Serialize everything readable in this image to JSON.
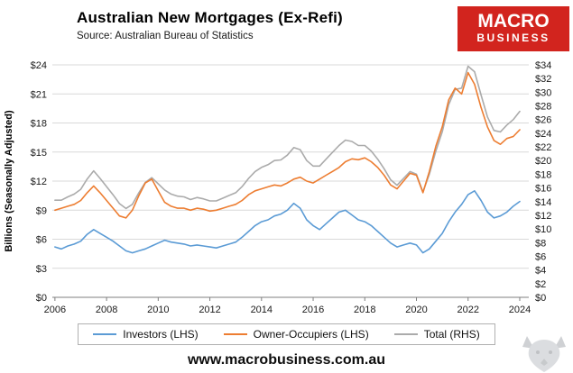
{
  "header": {
    "title": "Australian New Mortgages (Ex-Refi)",
    "source": "Source: Australian Bureau of Statistics",
    "logo": {
      "line1": "MACRO",
      "line2": "BUSINESS"
    }
  },
  "footer": {
    "url": "www.macrobusiness.com.au"
  },
  "legend": [
    {
      "label": "Investors (LHS)",
      "color": "#5b9bd5"
    },
    {
      "label": "Owner-Occupiers (LHS)",
      "color": "#ed7d31"
    },
    {
      "label": "Total (RHS)",
      "color": "#ababab"
    }
  ],
  "chart_data": {
    "type": "line",
    "title": "Australian New Mortgages (Ex-Refi)",
    "ylabel_left": "Billions (Seasonally Adjusted)",
    "tick_prefix": "$",
    "xlim": [
      2005.9,
      2024.35
    ],
    "ylim_left": [
      0,
      24
    ],
    "ylim_right": [
      0,
      34
    ],
    "yticks_left": [
      0,
      3,
      6,
      9,
      12,
      15,
      18,
      21,
      24
    ],
    "yticks_right": [
      0,
      2,
      4,
      6,
      8,
      10,
      12,
      14,
      16,
      18,
      20,
      22,
      24,
      26,
      28,
      30,
      32,
      34
    ],
    "xticks": [
      2006,
      2008,
      2010,
      2012,
      2014,
      2016,
      2018,
      2020,
      2022,
      2024
    ],
    "grid": true,
    "legend_position": "bottom",
    "x": [
      2006,
      2006.25,
      2006.5,
      2006.75,
      2007,
      2007.25,
      2007.5,
      2007.75,
      2008,
      2008.25,
      2008.5,
      2008.75,
      2009,
      2009.25,
      2009.5,
      2009.75,
      2010,
      2010.25,
      2010.5,
      2010.75,
      2011,
      2011.25,
      2011.5,
      2011.75,
      2012,
      2012.25,
      2012.5,
      2012.75,
      2013,
      2013.25,
      2013.5,
      2013.75,
      2014,
      2014.25,
      2014.5,
      2014.75,
      2015,
      2015.25,
      2015.5,
      2015.75,
      2016,
      2016.25,
      2016.5,
      2016.75,
      2017,
      2017.25,
      2017.5,
      2017.75,
      2018,
      2018.25,
      2018.5,
      2018.75,
      2019,
      2019.25,
      2019.5,
      2019.75,
      2020,
      2020.25,
      2020.5,
      2020.75,
      2021,
      2021.25,
      2021.5,
      2021.75,
      2022,
      2022.25,
      2022.5,
      2022.75,
      2023,
      2023.25,
      2023.5,
      2023.75,
      2024
    ],
    "series": [
      {
        "name": "Total (RHS)",
        "axis": "right",
        "color": "#ababab",
        "values": [
          14.2,
          14.2,
          14.7,
          15.1,
          15.8,
          17.3,
          18.5,
          17.4,
          16.2,
          15.0,
          13.7,
          13.0,
          13.6,
          15.3,
          16.8,
          17.5,
          16.6,
          15.7,
          15.1,
          14.8,
          14.7,
          14.3,
          14.6,
          14.4,
          14.1,
          14.1,
          14.5,
          14.9,
          15.3,
          16.2,
          17.4,
          18.4,
          19.0,
          19.4,
          20.0,
          20.1,
          20.8,
          21.9,
          21.6,
          20.0,
          19.2,
          19.2,
          20.2,
          21.2,
          22.2,
          23.0,
          22.8,
          22.2,
          22.2,
          21.4,
          20.2,
          18.8,
          17.2,
          16.4,
          17.4,
          18.4,
          18.0,
          15.4,
          18.0,
          21.4,
          24.2,
          28.2,
          30.4,
          30.6,
          33.8,
          33.0,
          29.6,
          26.4,
          24.4,
          24.2,
          25.2,
          26.0,
          27.2
        ]
      },
      {
        "name": "Owner-Occupiers (LHS)",
        "axis": "left",
        "color": "#ed7d31",
        "values": [
          9.0,
          9.2,
          9.4,
          9.6,
          10.0,
          10.8,
          11.5,
          10.8,
          10.0,
          9.2,
          8.4,
          8.2,
          9.0,
          10.5,
          11.8,
          12.2,
          11.0,
          9.8,
          9.4,
          9.2,
          9.2,
          9.0,
          9.2,
          9.1,
          8.9,
          9.0,
          9.2,
          9.4,
          9.6,
          10.0,
          10.6,
          11.0,
          11.2,
          11.4,
          11.6,
          11.5,
          11.8,
          12.2,
          12.4,
          12.0,
          11.8,
          12.2,
          12.6,
          13.0,
          13.4,
          14.0,
          14.3,
          14.2,
          14.4,
          14.0,
          13.4,
          12.6,
          11.6,
          11.2,
          12.0,
          12.8,
          12.6,
          10.8,
          13.0,
          15.6,
          17.6,
          20.4,
          21.6,
          21.0,
          23.2,
          22.0,
          19.6,
          17.6,
          16.2,
          15.8,
          16.4,
          16.6,
          17.3
        ]
      },
      {
        "name": "Investors (LHS)",
        "axis": "left",
        "color": "#5b9bd5",
        "values": [
          5.2,
          5.0,
          5.3,
          5.5,
          5.8,
          6.5,
          7.0,
          6.6,
          6.2,
          5.8,
          5.3,
          4.8,
          4.6,
          4.8,
          5.0,
          5.3,
          5.6,
          5.9,
          5.7,
          5.6,
          5.5,
          5.3,
          5.4,
          5.3,
          5.2,
          5.1,
          5.3,
          5.5,
          5.7,
          6.2,
          6.8,
          7.4,
          7.8,
          8.0,
          8.4,
          8.6,
          9.0,
          9.7,
          9.2,
          8.0,
          7.4,
          7.0,
          7.6,
          8.2,
          8.8,
          9.0,
          8.5,
          8.0,
          7.8,
          7.4,
          6.8,
          6.2,
          5.6,
          5.2,
          5.4,
          5.6,
          5.4,
          4.6,
          5.0,
          5.8,
          6.6,
          7.8,
          8.8,
          9.6,
          10.6,
          11.0,
          10.0,
          8.8,
          8.2,
          8.4,
          8.8,
          9.4,
          9.9
        ]
      }
    ]
  }
}
